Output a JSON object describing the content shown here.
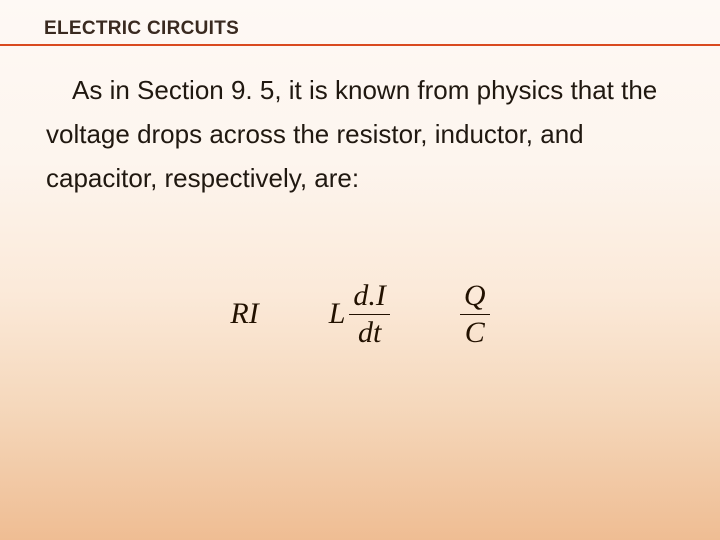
{
  "header": {
    "title": "ELECTRIC CIRCUITS"
  },
  "body": {
    "text": "As in Section 9. 5, it is known from physics that the voltage drops across the resistor, inductor, and capacitor, respectively, are:"
  },
  "formulas": {
    "resistor": {
      "R": "R",
      "I": "I"
    },
    "inductor": {
      "L": "L",
      "frac_top_d1": "d.",
      "frac_top_I": "I",
      "frac_bot_d": "d",
      "frac_bot_t": "t"
    },
    "capacitor": {
      "Q": "Q",
      "C": "C"
    }
  },
  "colors": {
    "accent_line": "#d94a1f",
    "title_color": "#3a2a20",
    "body_color": "#201810",
    "formula_color": "#221100",
    "bg_top": "#fef9f5",
    "bg_bottom": "#efbd93"
  }
}
